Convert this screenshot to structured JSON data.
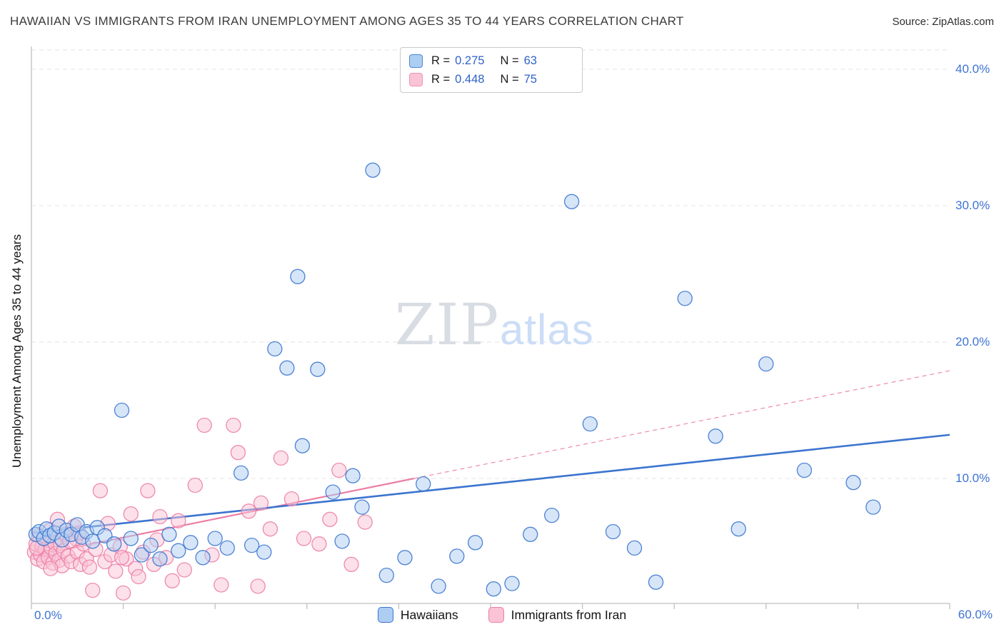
{
  "header": {
    "title": "HAWAIIAN VS IMMIGRANTS FROM IRAN UNEMPLOYMENT AMONG AGES 35 TO 44 YEARS CORRELATION CHART",
    "source": "Source: ZipAtlas.com"
  },
  "axes": {
    "y_label": "Unemployment Among Ages 35 to 44 years",
    "x_min_label": "0.0%",
    "x_max_label": "60.0%",
    "y_tick_labels": [
      "40.0%",
      "30.0%",
      "20.0%",
      "10.0%"
    ]
  },
  "watermark": {
    "zip": "ZIP",
    "atlas": "atlas"
  },
  "stats_legend": {
    "series": [
      {
        "r_label": "R =",
        "r_value": "0.275",
        "n_label": "N =",
        "n_value": "63",
        "swatch_fill": "#aecdf2",
        "swatch_border": "#4d86d2"
      },
      {
        "r_label": "R =",
        "r_value": "0.448",
        "n_label": "N =",
        "n_value": "75",
        "swatch_fill": "#fac3d6",
        "swatch_border": "#f093b4"
      }
    ]
  },
  "bottom_legend": [
    {
      "label": "Hawaiians"
    },
    {
      "label": "Immigrants from Iran"
    }
  ],
  "colors": {
    "grid": "#e3e3e3",
    "axis": "#c0c0c0",
    "tick_label_blue": "#3d73d3"
  },
  "chart_data": {
    "type": "scatter",
    "title": "Hawaiian vs Immigrants from Iran Unemployment Among Ages 35 to 44 Years Correlation Chart",
    "xlabel": "",
    "ylabel": "Unemployment Among Ages 35 to 44 years",
    "x_range": [
      0,
      60
    ],
    "y_range": [
      0,
      41.5
    ],
    "grid_y_values": [
      10,
      20,
      30,
      40
    ],
    "legend_position": "bottom-center",
    "series": [
      {
        "name": "Hawaiians",
        "r": 0.275,
        "n": 63,
        "fill": "#aecdf2",
        "line": "#3b74cf",
        "trend": {
          "x0": 0,
          "y0": 6.0,
          "x1": 60,
          "y1": 13.2
        },
        "points": [
          [
            0.3,
            5.9
          ],
          [
            0.5,
            6.1
          ],
          [
            0.8,
            5.6
          ],
          [
            1.0,
            6.3
          ],
          [
            1.2,
            5.8
          ],
          [
            1.5,
            6.0
          ],
          [
            1.8,
            6.5
          ],
          [
            2.0,
            5.5
          ],
          [
            2.3,
            6.2
          ],
          [
            2.6,
            5.9
          ],
          [
            3.0,
            6.6
          ],
          [
            3.3,
            5.7
          ],
          [
            3.6,
            6.1
          ],
          [
            4.0,
            5.4
          ],
          [
            4.3,
            6.4
          ],
          [
            4.8,
            5.8
          ],
          [
            5.4,
            5.2
          ],
          [
            5.9,
            15.0
          ],
          [
            6.5,
            5.6
          ],
          [
            7.2,
            4.4
          ],
          [
            7.8,
            5.1
          ],
          [
            8.4,
            4.1
          ],
          [
            9.0,
            5.9
          ],
          [
            9.6,
            4.7
          ],
          [
            10.4,
            5.3
          ],
          [
            11.2,
            4.2
          ],
          [
            12.0,
            5.6
          ],
          [
            12.8,
            4.9
          ],
          [
            13.7,
            10.4
          ],
          [
            14.4,
            5.1
          ],
          [
            15.2,
            4.6
          ],
          [
            15.9,
            19.5
          ],
          [
            16.7,
            18.1
          ],
          [
            17.4,
            24.8
          ],
          [
            17.7,
            12.4
          ],
          [
            18.7,
            18.0
          ],
          [
            19.7,
            9.0
          ],
          [
            20.3,
            5.4
          ],
          [
            21.0,
            10.2
          ],
          [
            21.6,
            7.9
          ],
          [
            22.3,
            32.6
          ],
          [
            23.2,
            2.9
          ],
          [
            24.4,
            4.2
          ],
          [
            25.6,
            9.6
          ],
          [
            26.6,
            2.1
          ],
          [
            27.8,
            4.3
          ],
          [
            29.0,
            5.3
          ],
          [
            30.2,
            1.9
          ],
          [
            31.4,
            2.3
          ],
          [
            32.6,
            5.9
          ],
          [
            34.0,
            7.3
          ],
          [
            35.3,
            30.3
          ],
          [
            36.5,
            14.0
          ],
          [
            38.0,
            6.1
          ],
          [
            39.4,
            4.9
          ],
          [
            40.8,
            2.4
          ],
          [
            42.7,
            23.2
          ],
          [
            44.7,
            13.1
          ],
          [
            46.2,
            6.3
          ],
          [
            48.0,
            18.4
          ],
          [
            50.5,
            10.6
          ],
          [
            53.7,
            9.7
          ],
          [
            55.0,
            7.9
          ]
        ]
      },
      {
        "name": "Immigrants from Iran",
        "r": 0.448,
        "n": 75,
        "fill": "#fac3d6",
        "line": "#ec7ea6",
        "trend": {
          "x0": 0,
          "y0": 4.3,
          "x1": 25,
          "y1": 10.0,
          "dash_x1": 60,
          "dash_y1": 17.9
        },
        "points": [
          [
            0.2,
            4.6
          ],
          [
            0.3,
            5.2
          ],
          [
            0.4,
            4.1
          ],
          [
            0.5,
            5.8
          ],
          [
            0.6,
            4.4
          ],
          [
            0.7,
            5.0
          ],
          [
            0.8,
            3.9
          ],
          [
            0.9,
            4.8
          ],
          [
            1.0,
            5.5
          ],
          [
            1.1,
            4.2
          ],
          [
            1.2,
            6.2
          ],
          [
            1.3,
            4.9
          ],
          [
            1.4,
            3.8
          ],
          [
            1.5,
            5.3
          ],
          [
            1.6,
            4.5
          ],
          [
            1.7,
            7.0
          ],
          [
            1.8,
            4.0
          ],
          [
            1.9,
            5.1
          ],
          [
            2.0,
            3.6
          ],
          [
            2.1,
            4.7
          ],
          [
            2.2,
            5.9
          ],
          [
            2.4,
            4.3
          ],
          [
            2.6,
            3.9
          ],
          [
            2.8,
            6.5
          ],
          [
            3.0,
            4.6
          ],
          [
            3.2,
            3.7
          ],
          [
            3.4,
            5.2
          ],
          [
            3.6,
            4.1
          ],
          [
            3.8,
            3.5
          ],
          [
            4.0,
            1.8
          ],
          [
            4.2,
            4.8
          ],
          [
            4.5,
            9.1
          ],
          [
            4.8,
            3.9
          ],
          [
            5.0,
            6.7
          ],
          [
            5.2,
            4.4
          ],
          [
            5.5,
            3.2
          ],
          [
            5.8,
            5.0
          ],
          [
            6.0,
            1.6
          ],
          [
            6.2,
            4.1
          ],
          [
            6.5,
            7.4
          ],
          [
            6.8,
            3.4
          ],
          [
            7.0,
            2.8
          ],
          [
            7.3,
            4.6
          ],
          [
            7.6,
            9.1
          ],
          [
            8.0,
            3.7
          ],
          [
            8.4,
            7.2
          ],
          [
            8.8,
            4.2
          ],
          [
            9.2,
            2.5
          ],
          [
            9.6,
            6.9
          ],
          [
            10.0,
            3.3
          ],
          [
            10.7,
            9.5
          ],
          [
            11.3,
            13.9
          ],
          [
            11.8,
            4.4
          ],
          [
            12.4,
            2.2
          ],
          [
            13.2,
            13.9
          ],
          [
            13.5,
            11.9
          ],
          [
            14.2,
            7.6
          ],
          [
            14.8,
            2.1
          ],
          [
            15.0,
            8.2
          ],
          [
            15.6,
            6.3
          ],
          [
            16.3,
            11.5
          ],
          [
            17.0,
            8.5
          ],
          [
            17.8,
            5.6
          ],
          [
            18.8,
            5.2
          ],
          [
            19.5,
            7.0
          ],
          [
            20.1,
            10.6
          ],
          [
            20.9,
            3.7
          ],
          [
            21.8,
            6.8
          ],
          [
            2.9,
            5.6
          ],
          [
            3.1,
            6.0
          ],
          [
            1.25,
            3.4
          ],
          [
            2.5,
            5.4
          ],
          [
            0.35,
            4.9
          ],
          [
            5.9,
            4.2
          ],
          [
            8.2,
            5.5
          ]
        ]
      }
    ]
  }
}
